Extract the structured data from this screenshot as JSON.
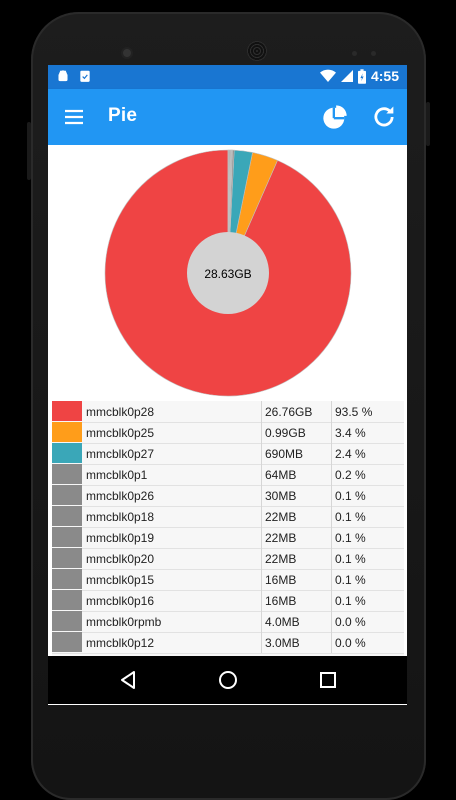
{
  "status_bar": {
    "time": "4:55",
    "icons": [
      "android-icon",
      "clipboard-check-icon",
      "wifi-icon",
      "cell-signal-icon",
      "battery-charging-icon"
    ]
  },
  "app_bar": {
    "title": "Pie",
    "actions": [
      "menu-icon",
      "pie-chart-icon",
      "refresh-icon"
    ]
  },
  "chart_data": {
    "type": "pie",
    "center_label": "28.63GB",
    "slices": [
      {
        "name": "mmcblk0p28",
        "size": "26.76GB",
        "pct": 93.5,
        "color": "#ef4444"
      },
      {
        "name": "mmcblk0p25",
        "size": "0.99GB",
        "pct": 3.4,
        "color": "#ff9d1a"
      },
      {
        "name": "mmcblk0p27",
        "size": "690MB",
        "pct": 2.4,
        "color": "#3aa7b8"
      },
      {
        "name": "mmcblk0p1",
        "size": "64MB",
        "pct": 0.2,
        "color": "#8a8a8a"
      },
      {
        "name": "mmcblk0p26",
        "size": "30MB",
        "pct": 0.1,
        "color": "#8a8a8a"
      },
      {
        "name": "mmcblk0p18",
        "size": "22MB",
        "pct": 0.1,
        "color": "#8a8a8a"
      },
      {
        "name": "mmcblk0p19",
        "size": "22MB",
        "pct": 0.1,
        "color": "#8a8a8a"
      },
      {
        "name": "mmcblk0p20",
        "size": "22MB",
        "pct": 0.1,
        "color": "#8a8a8a"
      },
      {
        "name": "mmcblk0p15",
        "size": "16MB",
        "pct": 0.1,
        "color": "#8a8a8a"
      },
      {
        "name": "mmcblk0p16",
        "size": "16MB",
        "pct": 0.1,
        "color": "#8a8a8a"
      },
      {
        "name": "mmcblk0rpmb",
        "size": "4.0MB",
        "pct": 0.0,
        "color": "#8a8a8a"
      },
      {
        "name": "mmcblk0p12",
        "size": "3.0MB",
        "pct": 0.0,
        "color": "#8a8a8a"
      }
    ]
  },
  "legend": {
    "rows": [
      {
        "name": "mmcblk0p28",
        "size": "26.76GB",
        "pct_label": "93.5 %"
      },
      {
        "name": "mmcblk0p25",
        "size": "0.99GB",
        "pct_label": "3.4 %"
      },
      {
        "name": "mmcblk0p27",
        "size": "690MB",
        "pct_label": "2.4 %"
      },
      {
        "name": "mmcblk0p1",
        "size": "64MB",
        "pct_label": "0.2 %"
      },
      {
        "name": "mmcblk0p26",
        "size": "30MB",
        "pct_label": "0.1 %"
      },
      {
        "name": "mmcblk0p18",
        "size": "22MB",
        "pct_label": "0.1 %"
      },
      {
        "name": "mmcblk0p19",
        "size": "22MB",
        "pct_label": "0.1 %"
      },
      {
        "name": "mmcblk0p20",
        "size": "22MB",
        "pct_label": "0.1 %"
      },
      {
        "name": "mmcblk0p15",
        "size": "16MB",
        "pct_label": "0.1 %"
      },
      {
        "name": "mmcblk0p16",
        "size": "16MB",
        "pct_label": "0.1 %"
      },
      {
        "name": "mmcblk0rpmb",
        "size": "4.0MB",
        "pct_label": "0.0 %"
      },
      {
        "name": "mmcblk0p12",
        "size": "3.0MB",
        "pct_label": "0.0 %"
      }
    ]
  },
  "nav_bar": {
    "buttons": [
      "back-icon",
      "home-icon",
      "recents-icon"
    ]
  },
  "colors": {
    "status_bar": "#1976d2",
    "app_bar": "#2196f3",
    "center_hole": "#d3d3d3"
  }
}
